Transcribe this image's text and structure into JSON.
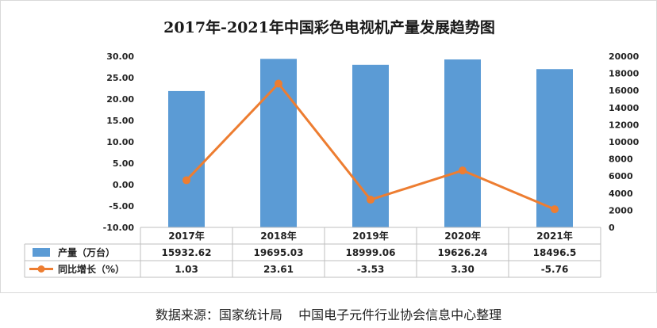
{
  "chart_data": {
    "type": "bar+line",
    "title": "2017年-2021年中国彩色电视机产量发展趋势图",
    "categories": [
      "2017年",
      "2018年",
      "2019年",
      "2020年",
      "2021年"
    ],
    "series": [
      {
        "name": "产量（万台）",
        "kind": "bar",
        "axis": "right",
        "color": "#5b9bd5",
        "values": [
          15932.62,
          19695.03,
          18999.06,
          19626.24,
          18496.5
        ],
        "labels": [
          "15932.62",
          "19695.03",
          "18999.06",
          "19626.24",
          "18496.5"
        ]
      },
      {
        "name": "同比增长（%）",
        "kind": "line",
        "axis": "left",
        "color": "#ed7d31",
        "values": [
          1.03,
          23.61,
          -3.53,
          3.3,
          -5.76
        ],
        "labels": [
          "1.03",
          "23.61",
          "-3.53",
          "3.30",
          "-5.76"
        ]
      }
    ],
    "left_axis": {
      "ylim": [
        -10,
        30
      ],
      "ticks": [
        "30.00",
        "25.00",
        "20.00",
        "15.00",
        "10.00",
        "5.00",
        "0.00",
        "-5.00",
        "-10.00"
      ]
    },
    "right_axis": {
      "ylim": [
        0,
        20000
      ],
      "ticks": [
        "20000",
        "18000",
        "16000",
        "14000",
        "12000",
        "10000",
        "8000",
        "6000",
        "4000",
        "2000",
        "0"
      ]
    },
    "grid": false,
    "legend": "data-table"
  },
  "source_note": "数据来源：国家统计局    中国电子元件行业协会信息中心整理"
}
